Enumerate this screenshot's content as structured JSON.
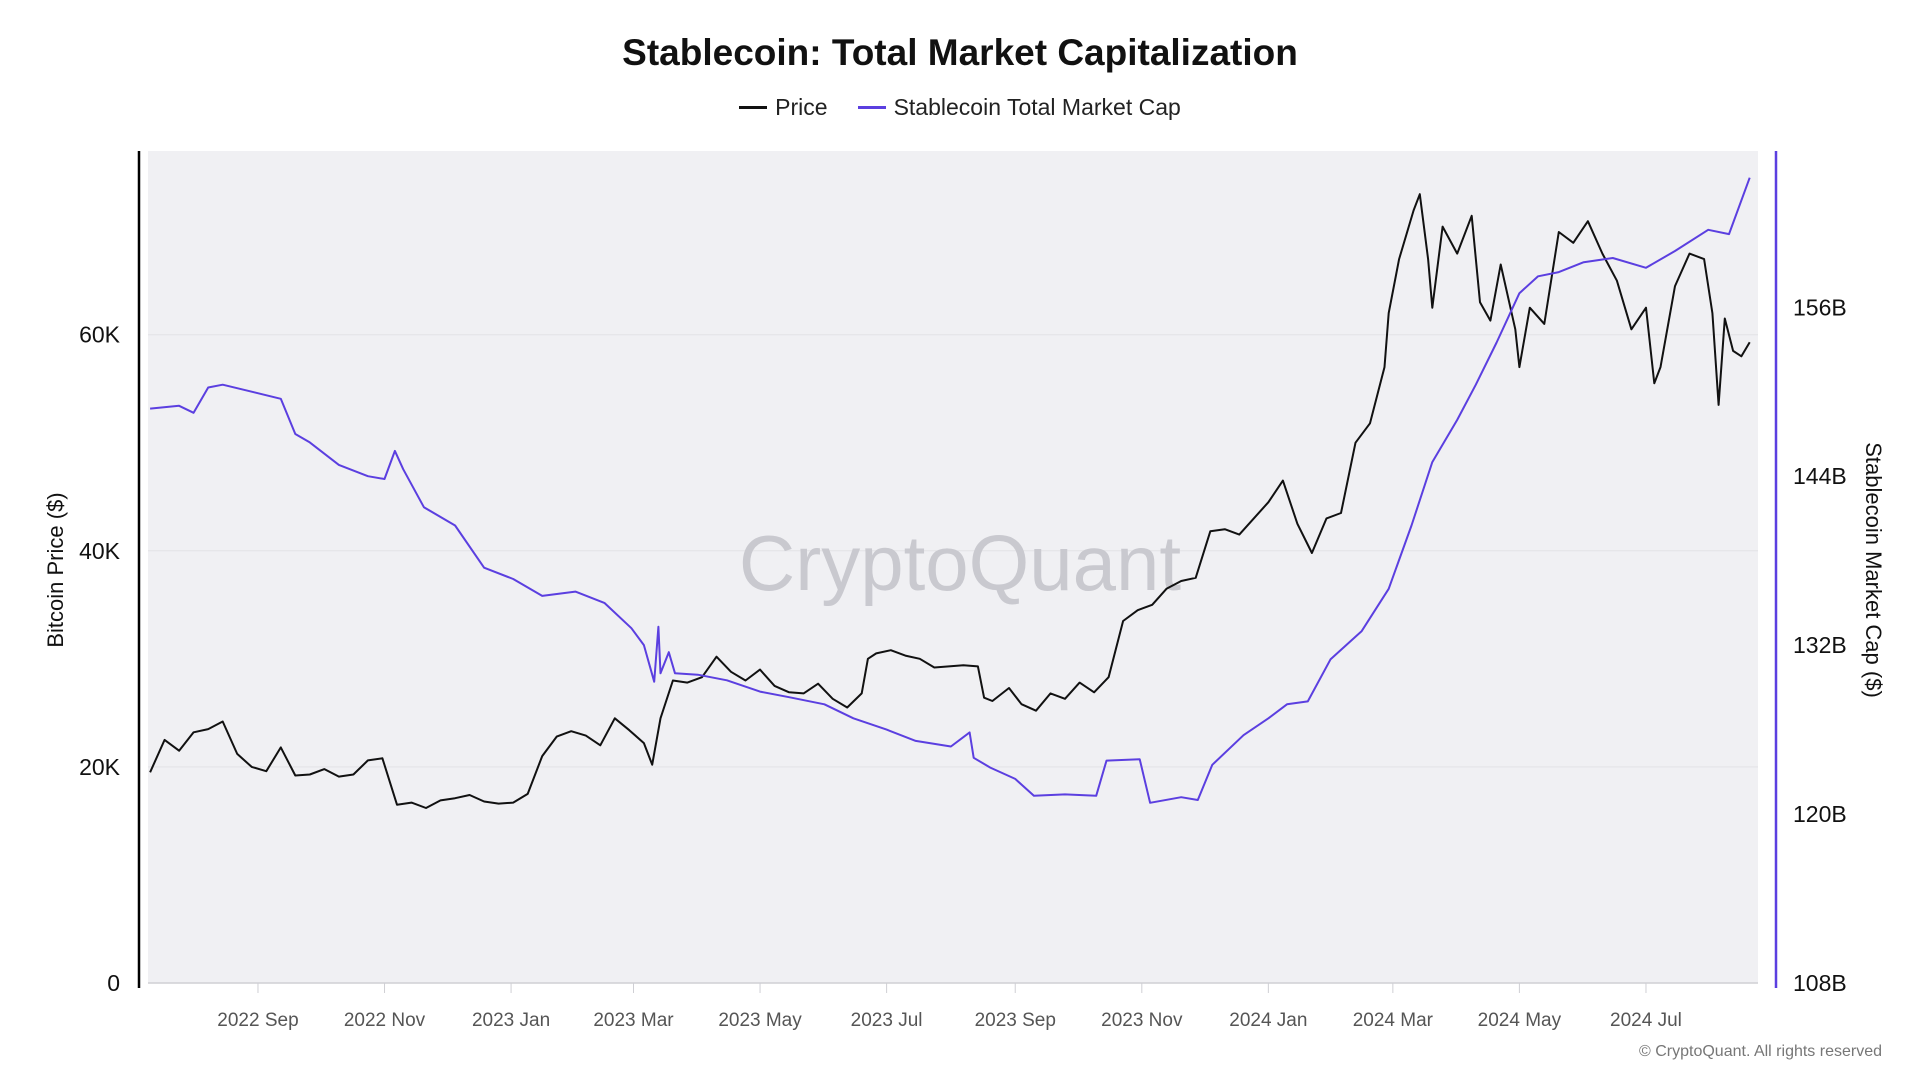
{
  "chart_data": {
    "type": "line",
    "title": "Stablecoin: Total Market Capitalization",
    "legend_placement": "top-center",
    "grid": true,
    "watermark": "CryptoQuant",
    "copyright": "© CryptoQuant. All rights reserved",
    "xlim": [
      "2022-07-10",
      "2024-08-24"
    ],
    "x_ticks": [
      {
        "date": "2022-09-01",
        "label": "2022 Sep"
      },
      {
        "date": "2022-11-01",
        "label": "2022 Nov"
      },
      {
        "date": "2023-01-01",
        "label": "2023 Jan"
      },
      {
        "date": "2023-03-01",
        "label": "2023 Mar"
      },
      {
        "date": "2023-05-01",
        "label": "2023 May"
      },
      {
        "date": "2023-07-01",
        "label": "2023 Jul"
      },
      {
        "date": "2023-09-01",
        "label": "2023 Sep"
      },
      {
        "date": "2023-11-01",
        "label": "2023 Nov"
      },
      {
        "date": "2024-01-01",
        "label": "2024 Jan"
      },
      {
        "date": "2024-03-01",
        "label": "2024 Mar"
      },
      {
        "date": "2024-05-01",
        "label": "2024 May"
      },
      {
        "date": "2024-07-01",
        "label": "2024 Jul"
      }
    ],
    "y_left": {
      "label": "Bitcoin Price ($)",
      "range": [
        0,
        77000
      ],
      "ticks": [
        {
          "v": 0,
          "label": "0"
        },
        {
          "v": 20000,
          "label": "20K"
        },
        {
          "v": 40000,
          "label": "40K"
        },
        {
          "v": 60000,
          "label": "60K"
        }
      ],
      "axis_color": "#000000"
    },
    "y_right": {
      "label": "Stablecoin Market Cap ($)",
      "range": [
        108,
        167.1
      ],
      "unit": "B",
      "ticks": [
        {
          "v": 108,
          "label": "108B"
        },
        {
          "v": 120,
          "label": "120B"
        },
        {
          "v": 132,
          "label": "132B"
        },
        {
          "v": 144,
          "label": "144B"
        },
        {
          "v": 156,
          "label": "156B"
        }
      ],
      "axis_color": "#5b3fe0"
    },
    "series": [
      {
        "name": "Price",
        "axis": "left",
        "color": "#111111",
        "points": [
          [
            "2022-07-11",
            19500
          ],
          [
            "2022-07-18",
            22500
          ],
          [
            "2022-07-25",
            21500
          ],
          [
            "2022-08-01",
            23200
          ],
          [
            "2022-08-08",
            23500
          ],
          [
            "2022-08-15",
            24200
          ],
          [
            "2022-08-22",
            21200
          ],
          [
            "2022-08-29",
            20000
          ],
          [
            "2022-09-05",
            19600
          ],
          [
            "2022-09-12",
            21800
          ],
          [
            "2022-09-19",
            19200
          ],
          [
            "2022-09-26",
            19300
          ],
          [
            "2022-10-03",
            19800
          ],
          [
            "2022-10-10",
            19100
          ],
          [
            "2022-10-17",
            19300
          ],
          [
            "2022-10-24",
            20600
          ],
          [
            "2022-10-31",
            20800
          ],
          [
            "2022-11-07",
            16500
          ],
          [
            "2022-11-14",
            16700
          ],
          [
            "2022-11-21",
            16200
          ],
          [
            "2022-11-28",
            16900
          ],
          [
            "2022-12-05",
            17100
          ],
          [
            "2022-12-12",
            17400
          ],
          [
            "2022-12-19",
            16800
          ],
          [
            "2022-12-26",
            16600
          ],
          [
            "2023-01-02",
            16700
          ],
          [
            "2023-01-09",
            17500
          ],
          [
            "2023-01-16",
            21000
          ],
          [
            "2023-01-23",
            22800
          ],
          [
            "2023-01-30",
            23300
          ],
          [
            "2023-02-06",
            22900
          ],
          [
            "2023-02-13",
            22000
          ],
          [
            "2023-02-20",
            24500
          ],
          [
            "2023-02-27",
            23400
          ],
          [
            "2023-03-06",
            22200
          ],
          [
            "2023-03-10",
            20200
          ],
          [
            "2023-03-14",
            24500
          ],
          [
            "2023-03-20",
            28000
          ],
          [
            "2023-03-27",
            27800
          ],
          [
            "2023-04-03",
            28300
          ],
          [
            "2023-04-10",
            30200
          ],
          [
            "2023-04-17",
            28800
          ],
          [
            "2023-04-24",
            28000
          ],
          [
            "2023-05-01",
            29000
          ],
          [
            "2023-05-08",
            27500
          ],
          [
            "2023-05-15",
            26900
          ],
          [
            "2023-05-22",
            26800
          ],
          [
            "2023-05-29",
            27700
          ],
          [
            "2023-06-05",
            26300
          ],
          [
            "2023-06-12",
            25500
          ],
          [
            "2023-06-19",
            26800
          ],
          [
            "2023-06-22",
            30000
          ],
          [
            "2023-06-26",
            30500
          ],
          [
            "2023-07-03",
            30800
          ],
          [
            "2023-07-10",
            30300
          ],
          [
            "2023-07-17",
            30000
          ],
          [
            "2023-07-24",
            29200
          ],
          [
            "2023-07-31",
            29300
          ],
          [
            "2023-08-07",
            29400
          ],
          [
            "2023-08-14",
            29300
          ],
          [
            "2023-08-17",
            26400
          ],
          [
            "2023-08-21",
            26100
          ],
          [
            "2023-08-29",
            27300
          ],
          [
            "2023-09-04",
            25800
          ],
          [
            "2023-09-11",
            25200
          ],
          [
            "2023-09-18",
            26800
          ],
          [
            "2023-09-25",
            26300
          ],
          [
            "2023-10-02",
            27800
          ],
          [
            "2023-10-09",
            26900
          ],
          [
            "2023-10-16",
            28300
          ],
          [
            "2023-10-23",
            33500
          ],
          [
            "2023-10-30",
            34500
          ],
          [
            "2023-11-06",
            35000
          ],
          [
            "2023-11-13",
            36500
          ],
          [
            "2023-11-20",
            37200
          ],
          [
            "2023-11-27",
            37500
          ],
          [
            "2023-12-04",
            41800
          ],
          [
            "2023-12-11",
            42000
          ],
          [
            "2023-12-18",
            41500
          ],
          [
            "2023-12-25",
            43000
          ],
          [
            "2024-01-01",
            44500
          ],
          [
            "2024-01-08",
            46500
          ],
          [
            "2024-01-15",
            42500
          ],
          [
            "2024-01-22",
            39800
          ],
          [
            "2024-01-29",
            43000
          ],
          [
            "2024-02-05",
            43500
          ],
          [
            "2024-02-12",
            50000
          ],
          [
            "2024-02-19",
            51800
          ],
          [
            "2024-02-26",
            57000
          ],
          [
            "2024-02-28",
            62000
          ],
          [
            "2024-03-04",
            67000
          ],
          [
            "2024-03-11",
            71500
          ],
          [
            "2024-03-14",
            73000
          ],
          [
            "2024-03-18",
            67000
          ],
          [
            "2024-03-20",
            62500
          ],
          [
            "2024-03-25",
            70000
          ],
          [
            "2024-04-01",
            67500
          ],
          [
            "2024-04-08",
            71000
          ],
          [
            "2024-04-12",
            63000
          ],
          [
            "2024-04-17",
            61300
          ],
          [
            "2024-04-22",
            66500
          ],
          [
            "2024-04-29",
            60500
          ],
          [
            "2024-05-01",
            57000
          ],
          [
            "2024-05-06",
            62500
          ],
          [
            "2024-05-13",
            61000
          ],
          [
            "2024-05-20",
            69500
          ],
          [
            "2024-05-27",
            68500
          ],
          [
            "2024-06-03",
            70500
          ],
          [
            "2024-06-10",
            67500
          ],
          [
            "2024-06-17",
            65000
          ],
          [
            "2024-06-24",
            60500
          ],
          [
            "2024-07-01",
            62500
          ],
          [
            "2024-07-05",
            55500
          ],
          [
            "2024-07-08",
            57000
          ],
          [
            "2024-07-15",
            64500
          ],
          [
            "2024-07-22",
            67500
          ],
          [
            "2024-07-29",
            67000
          ],
          [
            "2024-08-02",
            62000
          ],
          [
            "2024-08-05",
            53500
          ],
          [
            "2024-08-08",
            61500
          ],
          [
            "2024-08-12",
            58500
          ],
          [
            "2024-08-16",
            58000
          ],
          [
            "2024-08-20",
            59300
          ]
        ]
      },
      {
        "name": "Stablecoin Total Market Cap",
        "axis": "right",
        "color": "#5b3fe0",
        "points": [
          [
            "2022-07-11",
            148.8
          ],
          [
            "2022-07-25",
            149.0
          ],
          [
            "2022-08-01",
            148.5
          ],
          [
            "2022-08-08",
            150.3
          ],
          [
            "2022-08-15",
            150.5
          ],
          [
            "2022-08-29",
            150.0
          ],
          [
            "2022-09-12",
            149.5
          ],
          [
            "2022-09-19",
            147.0
          ],
          [
            "2022-09-26",
            146.4
          ],
          [
            "2022-10-10",
            144.8
          ],
          [
            "2022-10-24",
            144.0
          ],
          [
            "2022-11-01",
            143.8
          ],
          [
            "2022-11-06",
            145.8
          ],
          [
            "2022-11-10",
            144.5
          ],
          [
            "2022-11-20",
            141.8
          ],
          [
            "2022-12-05",
            140.5
          ],
          [
            "2022-12-19",
            137.5
          ],
          [
            "2023-01-02",
            136.7
          ],
          [
            "2023-01-16",
            135.5
          ],
          [
            "2023-02-01",
            135.8
          ],
          [
            "2023-02-15",
            135.0
          ],
          [
            "2023-02-28",
            133.2
          ],
          [
            "2023-03-06",
            132.0
          ],
          [
            "2023-03-11",
            129.4
          ],
          [
            "2023-03-13",
            133.3
          ],
          [
            "2023-03-14",
            130.0
          ],
          [
            "2023-03-18",
            131.5
          ],
          [
            "2023-03-21",
            130.0
          ],
          [
            "2023-04-01",
            129.9
          ],
          [
            "2023-04-15",
            129.5
          ],
          [
            "2023-05-01",
            128.7
          ],
          [
            "2023-05-15",
            128.3
          ],
          [
            "2023-06-01",
            127.8
          ],
          [
            "2023-06-15",
            126.8
          ],
          [
            "2023-07-01",
            126.0
          ],
          [
            "2023-07-15",
            125.2
          ],
          [
            "2023-08-01",
            124.8
          ],
          [
            "2023-08-10",
            125.8
          ],
          [
            "2023-08-12",
            124.0
          ],
          [
            "2023-08-20",
            123.3
          ],
          [
            "2023-09-01",
            122.5
          ],
          [
            "2023-09-10",
            121.3
          ],
          [
            "2023-09-25",
            121.4
          ],
          [
            "2023-10-10",
            121.3
          ],
          [
            "2023-10-15",
            123.8
          ],
          [
            "2023-10-31",
            123.9
          ],
          [
            "2023-11-05",
            120.8
          ],
          [
            "2023-11-20",
            121.2
          ],
          [
            "2023-11-28",
            121.0
          ],
          [
            "2023-12-05",
            123.5
          ],
          [
            "2023-12-20",
            125.6
          ],
          [
            "2024-01-01",
            126.8
          ],
          [
            "2024-01-10",
            127.8
          ],
          [
            "2024-01-20",
            128.0
          ],
          [
            "2024-01-31",
            131.0
          ],
          [
            "2024-02-15",
            133.0
          ],
          [
            "2024-02-28",
            136.0
          ],
          [
            "2024-03-10",
            140.5
          ],
          [
            "2024-03-20",
            145.0
          ],
          [
            "2024-04-01",
            148.0
          ],
          [
            "2024-04-10",
            150.5
          ],
          [
            "2024-04-20",
            153.5
          ],
          [
            "2024-05-01",
            157.0
          ],
          [
            "2024-05-10",
            158.2
          ],
          [
            "2024-05-20",
            158.5
          ],
          [
            "2024-06-01",
            159.2
          ],
          [
            "2024-06-15",
            159.5
          ],
          [
            "2024-07-01",
            158.8
          ],
          [
            "2024-07-15",
            160.0
          ],
          [
            "2024-07-31",
            161.5
          ],
          [
            "2024-08-10",
            161.2
          ],
          [
            "2024-08-20",
            165.2
          ]
        ]
      }
    ]
  }
}
